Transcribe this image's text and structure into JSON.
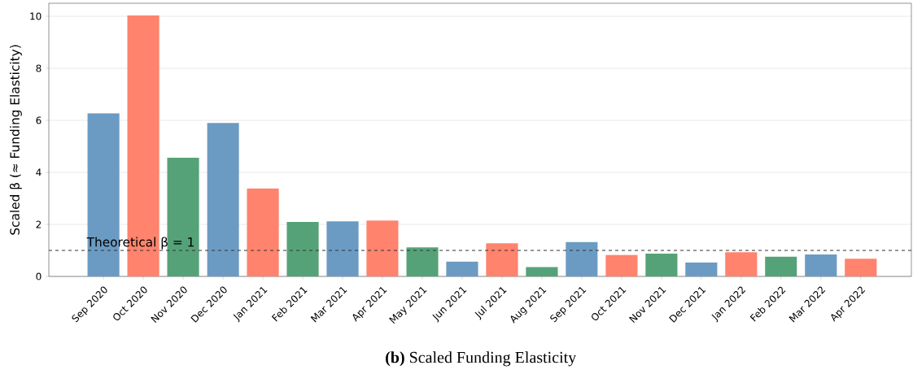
{
  "chart_data": {
    "type": "bar",
    "title": "**(b)** Scaled Funding Elasticity",
    "ylabel": "Scaled β (≈ Funding Elasticity)",
    "categories": [
      "Sep 2020",
      "Oct 2020",
      "Nov 2020",
      "Dec 2020",
      "Jan 2021",
      "Feb 2021",
      "Mar 2021",
      "Apr 2021",
      "May 2021",
      "Jun 2021",
      "Jul 2021",
      "Aug 2021",
      "Sep 2021",
      "Oct 2021",
      "Nov 2021",
      "Dec 2021",
      "Jan 2022",
      "Feb 2022",
      "Mar 2022",
      "Apr 2022"
    ],
    "values": [
      6.27,
      10.03,
      4.56,
      5.9,
      3.38,
      2.09,
      2.12,
      2.15,
      1.12,
      0.57,
      1.27,
      0.36,
      1.32,
      0.83,
      0.88,
      0.54,
      0.93,
      0.76,
      0.84,
      0.68
    ],
    "colors": [
      "#6b9bc3",
      "#ff836d",
      "#56a278",
      "#6b9bc3",
      "#ff836d",
      "#56a278",
      "#6b9bc3",
      "#ff836d",
      "#56a278",
      "#6b9bc3",
      "#ff836d",
      "#56a278",
      "#6b9bc3",
      "#ff836d",
      "#56a278",
      "#6b9bc3",
      "#ff836d",
      "#56a278",
      "#6b9bc3",
      "#ff836d"
    ],
    "ylim": [
      0,
      10.5
    ],
    "yticks": [
      0,
      2,
      4,
      6,
      8,
      10
    ],
    "grid": "y",
    "ref_lines": [
      {
        "axis": "y",
        "value": 1,
        "label": "Theoretical β = 1",
        "color": "#333333",
        "line_style": "dashed"
      }
    ]
  }
}
